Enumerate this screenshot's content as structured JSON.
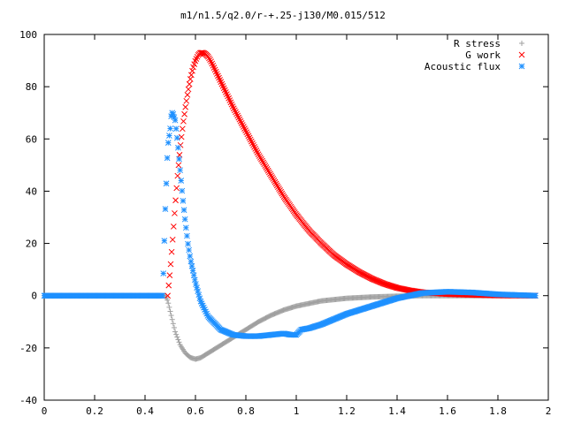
{
  "chart_data": {
    "type": "scatter",
    "title": "m1/n1.5/q2.0/r-+.25-j130/M0.015/512",
    "xlabel": "",
    "ylabel": "",
    "xlim": [
      0,
      2
    ],
    "ylim": [
      -40,
      100
    ],
    "x_ticks": [
      0,
      0.2,
      0.4,
      0.6,
      0.8,
      1,
      1.2,
      1.4,
      1.6,
      1.8,
      2
    ],
    "x_tick_labels": [
      "0",
      "0.2",
      "0.4",
      "0.6",
      "0.8",
      "1",
      "1.2",
      "1.4",
      "1.6",
      "1.8",
      "2"
    ],
    "y_ticks": [
      -40,
      -20,
      0,
      20,
      40,
      60,
      80,
      100
    ],
    "y_tick_labels": [
      "-40",
      "-20",
      "0",
      "20",
      "40",
      "60",
      "80",
      "100"
    ],
    "grid": false,
    "legend_position": "top-right",
    "series": [
      {
        "name": "R stress",
        "marker": "plus",
        "color": "#a0a0a0",
        "x": [
          0.0,
          0.1,
          0.2,
          0.3,
          0.4,
          0.48,
          0.49,
          0.5,
          0.51,
          0.52,
          0.54,
          0.56,
          0.58,
          0.6,
          0.62,
          0.65,
          0.7,
          0.75,
          0.8,
          0.85,
          0.9,
          0.95,
          1.0,
          1.05,
          1.1,
          1.2,
          1.3,
          1.4,
          1.5,
          1.6,
          1.7,
          1.8,
          1.95
        ],
        "y": [
          0,
          0,
          0,
          0,
          0,
          0,
          -2,
          -6,
          -10,
          -14,
          -19,
          -22,
          -23.7,
          -24.3,
          -23.8,
          -22,
          -19,
          -16,
          -13,
          -10,
          -7.5,
          -5.5,
          -4,
          -3,
          -2,
          -1,
          -0.5,
          -0.2,
          0,
          0,
          0,
          0,
          0
        ]
      },
      {
        "name": "G work",
        "marker": "cross",
        "color": "#ff0000",
        "x": [
          0.49,
          0.5,
          0.51,
          0.52,
          0.53,
          0.54,
          0.55,
          0.56,
          0.57,
          0.58,
          0.59,
          0.6,
          0.61,
          0.62,
          0.63,
          0.64,
          0.65,
          0.66,
          0.68,
          0.7,
          0.75,
          0.8,
          0.85,
          0.9,
          0.95,
          1.0,
          1.05,
          1.1,
          1.15,
          1.2,
          1.25,
          1.3,
          1.35,
          1.4,
          1.45,
          1.5,
          1.6,
          1.7,
          1.8,
          1.95
        ],
        "y": [
          0,
          10,
          22,
          35,
          47,
          57,
          65,
          72,
          78,
          83,
          87,
          90,
          92,
          93,
          93,
          92.5,
          91.5,
          90,
          86,
          82,
          72,
          63,
          54,
          46,
          38,
          31,
          25,
          20,
          15.5,
          12,
          9,
          6.5,
          4.5,
          3,
          2,
          1.3,
          0.6,
          0.3,
          0.1,
          0
        ]
      },
      {
        "name": "Acoustic flux",
        "marker": "star",
        "color": "#1e90ff",
        "x": [
          0.0,
          0.1,
          0.2,
          0.3,
          0.4,
          0.47,
          0.48,
          0.49,
          0.5,
          0.505,
          0.51,
          0.52,
          0.53,
          0.54,
          0.55,
          0.56,
          0.57,
          0.58,
          0.6,
          0.62,
          0.65,
          0.7,
          0.75,
          0.8,
          0.85,
          0.9,
          0.95,
          0.98,
          1.0,
          1.02,
          1.05,
          1.1,
          1.15,
          1.2,
          1.3,
          1.4,
          1.5,
          1.6,
          1.7,
          1.8,
          1.95
        ],
        "y": [
          0,
          0,
          0,
          0,
          0,
          0,
          32,
          57,
          64,
          70,
          70,
          67,
          58,
          47,
          37,
          28,
          20,
          14,
          5,
          -2,
          -8,
          -13,
          -15,
          -15.5,
          -15.5,
          -15,
          -14.5,
          -15,
          -15,
          -13,
          -12.5,
          -11,
          -9,
          -7,
          -4,
          -1,
          1,
          1.5,
          1.2,
          0.5,
          0
        ]
      }
    ]
  }
}
